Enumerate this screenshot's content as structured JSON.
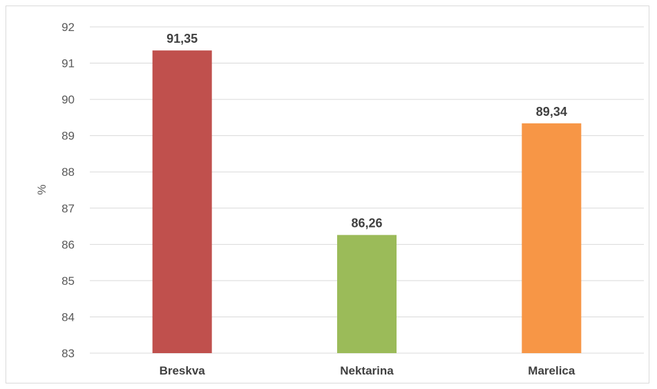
{
  "chart_data": {
    "type": "bar",
    "title": "",
    "xlabel": "",
    "ylabel": "%",
    "ylim": [
      83,
      92
    ],
    "yticks": [
      83,
      84,
      85,
      86,
      87,
      88,
      89,
      90,
      91,
      92
    ],
    "categories": [
      "Breskva",
      "Nektarina",
      "Marelica"
    ],
    "values": [
      91.35,
      86.26,
      89.34
    ],
    "data_labels": [
      "91,35",
      "86,26",
      "89,34"
    ],
    "colors": [
      "#c0504d",
      "#9bbb59",
      "#f79646"
    ],
    "grid": true,
    "legend": "none"
  }
}
